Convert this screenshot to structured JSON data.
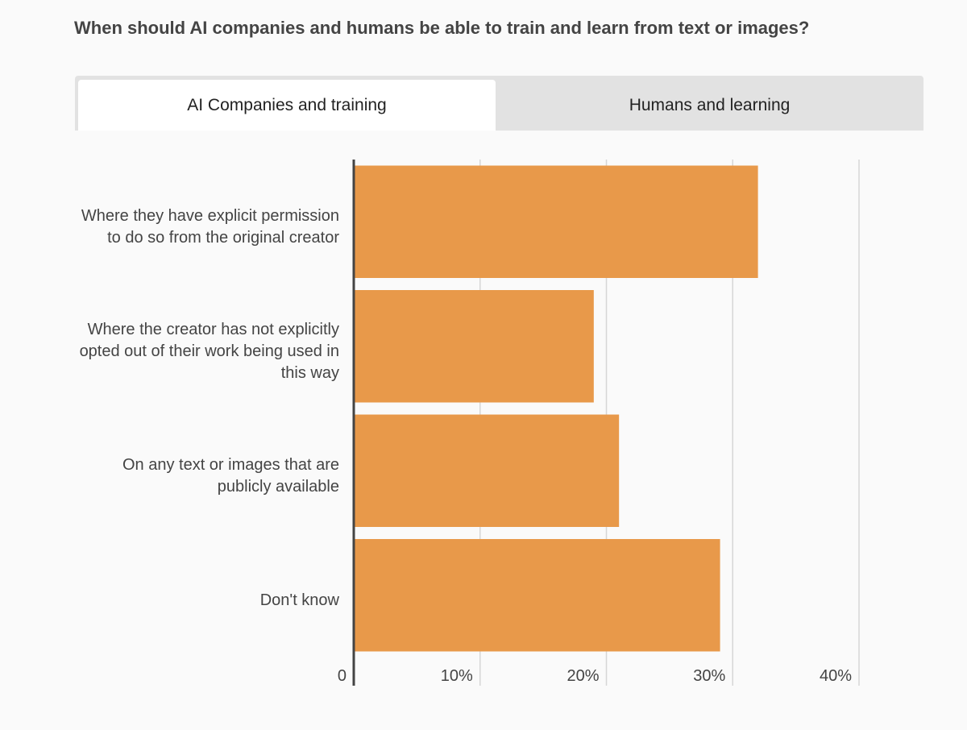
{
  "tabs": [
    "AI Companies and training",
    "Humans and learning"
  ],
  "chart_data": {
    "type": "barh",
    "title": "When should AI companies and humans be able to train and learn from text or images?",
    "categories": [
      "Where they have explicit permission to do so from the original creator",
      "Where the creator has not explicitly opted out of their work being used in this way",
      "On any text or images that are publicly available",
      "Don't know"
    ],
    "values": [
      32,
      19,
      21,
      29
    ],
    "color": "#e8994a",
    "xlim": [
      0,
      40
    ],
    "xticks": [
      0,
      {
        "value": 10,
        "label": "10%"
      },
      {
        "value": 20,
        "label": "20%"
      },
      {
        "value": 30,
        "label": "30%"
      },
      {
        "value": 40,
        "label": "40%"
      }
    ],
    "grid": true
  }
}
